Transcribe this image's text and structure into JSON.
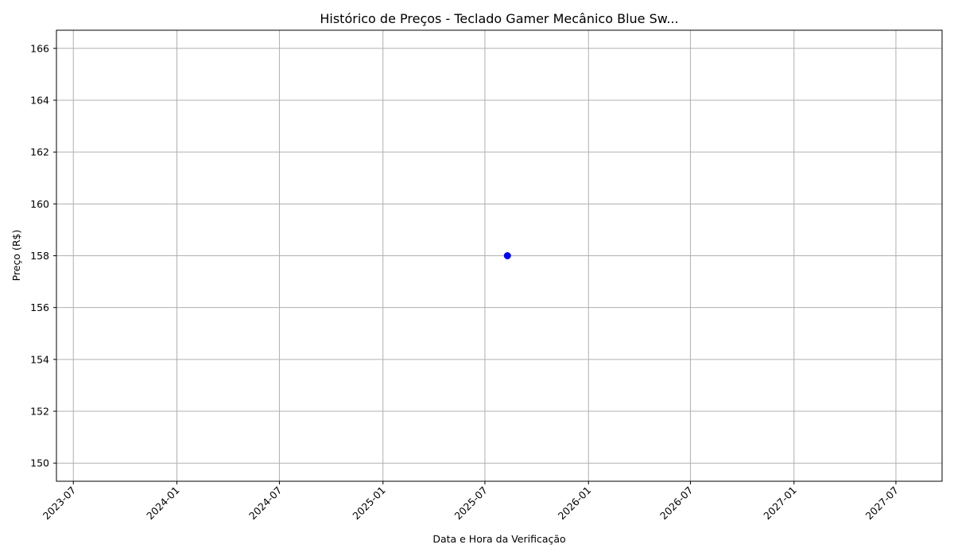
{
  "chart_data": {
    "type": "scatter",
    "title": "Histórico de Preços - Teclado Gamer Mecânico Blue Sw...",
    "xlabel": "Data e Hora da Verificação",
    "ylabel": "Preço (R$)",
    "x_ticks": [
      "2023-07",
      "2024-01",
      "2024-07",
      "2025-01",
      "2025-07",
      "2026-01",
      "2026-07",
      "2027-01",
      "2027-07"
    ],
    "y_ticks": [
      150,
      152,
      154,
      156,
      158,
      160,
      162,
      164,
      166
    ],
    "xlim": [
      "2023-06-01",
      "2027-09-21"
    ],
    "ylim": [
      149.3,
      166.7
    ],
    "grid": true,
    "series": [
      {
        "points": [
          {
            "x": "2025-08-10",
            "y": 158
          }
        ],
        "color": "#0000ff",
        "marker": "circle"
      }
    ]
  }
}
